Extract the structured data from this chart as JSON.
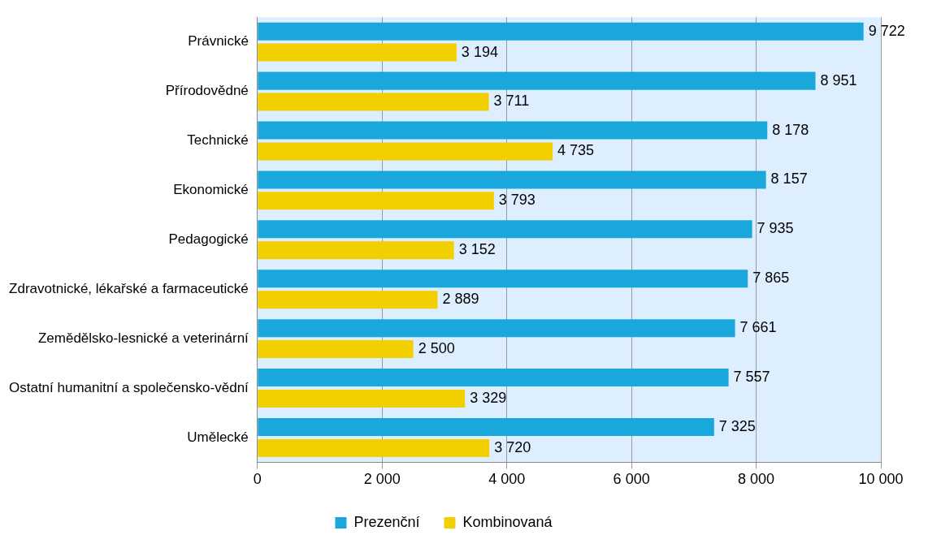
{
  "chart_data": {
    "type": "bar",
    "orientation": "horizontal",
    "categories": [
      "Právnické",
      "Přírodovědné",
      "Technické",
      "Ekonomické",
      "Pedagogické",
      "Zdravotnické, lékařské a farmaceutické",
      "Zemědělsko-lesnické a veterinární",
      "Ostatní humanitní a společensko-vědní",
      "Umělecké"
    ],
    "series": [
      {
        "name": "Prezenční",
        "color": "#1aa7dc",
        "values": [
          9722,
          8951,
          8178,
          8157,
          7935,
          7865,
          7661,
          7557,
          7325
        ],
        "value_labels": [
          "9 722",
          "8 951",
          "8 178",
          "8 157",
          "7 935",
          "7 865",
          "7 661",
          "7 557",
          "7 325"
        ]
      },
      {
        "name": "Kombinovaná",
        "color": "#f2d000",
        "values": [
          3194,
          3711,
          4735,
          3793,
          3152,
          2889,
          2500,
          3329,
          3720
        ],
        "value_labels": [
          "3 194",
          "3 711",
          "4 735",
          "3 793",
          "3 152",
          "2 889",
          "2 500",
          "3 329",
          "3 720"
        ]
      }
    ],
    "xlim": [
      0,
      10000
    ],
    "xticks": [
      0,
      {
        "value": 2000,
        "label": "2 000"
      },
      {
        "value": 4000,
        "label": "4 000"
      },
      {
        "value": 6000,
        "label": "6 000"
      },
      {
        "value": 8000,
        "label": "8 000"
      },
      {
        "value": 10000,
        "label": "10 000"
      }
    ],
    "grid": "x",
    "legend": "bottom"
  }
}
